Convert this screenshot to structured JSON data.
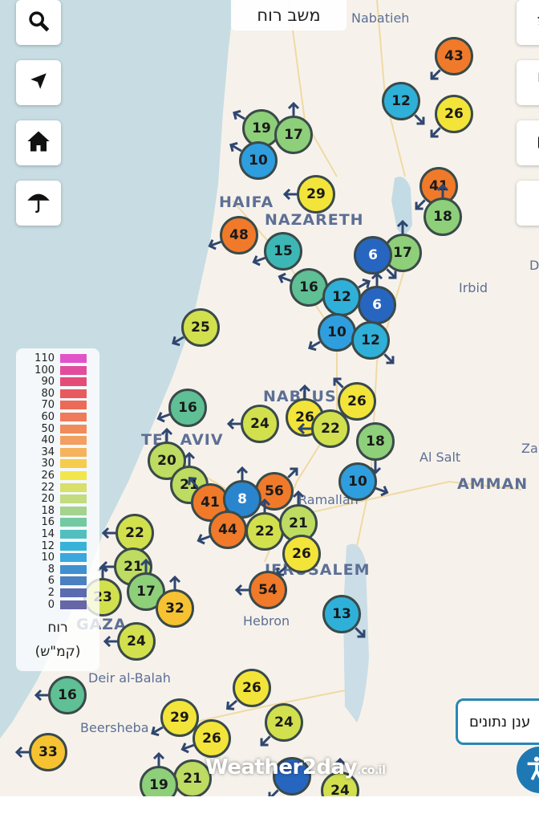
{
  "header": {
    "title": "משב רוח"
  },
  "toolbar_left": [
    {
      "icon": "search-icon"
    },
    {
      "icon": "locate-arrow-icon"
    },
    {
      "icon": "home-icon"
    },
    {
      "icon": "umbrella-icon"
    }
  ],
  "toolbar_right": [
    {
      "icon": "layers-icon"
    },
    {
      "icon": "fullscreen-icon"
    },
    {
      "icon": "camera-icon"
    },
    {
      "icon": "radar-icon"
    }
  ],
  "places": {
    "nabatieh": "Nabatieh",
    "haifa": "HAIFA",
    "nazareth": "NAZARETH",
    "irbid": "Irbid",
    "nablus": "NABLUS",
    "telaviv": "TEL AVIV",
    "alsalt": "Al Salt",
    "amman": "AMMAN",
    "ramallah": "Ramallah",
    "jerusalem": "JERUSALEM",
    "hebron": "Hebron",
    "gaza": "GAZA",
    "deir": "Deir al-Balah",
    "beersheba": "Beersheba",
    "za": "Za",
    "d": "D"
  },
  "legend": {
    "title": "רוח",
    "unit": "(קמ\"ש)",
    "steps": [
      {
        "label": "110",
        "color": "#e253c9"
      },
      {
        "label": "100",
        "color": "#e24c9c"
      },
      {
        "label": "90",
        "color": "#e44c77"
      },
      {
        "label": "80",
        "color": "#e85a5e"
      },
      {
        "label": "70",
        "color": "#ec6a58"
      },
      {
        "label": "60",
        "color": "#ef7b5a"
      },
      {
        "label": "50",
        "color": "#f18b5a"
      },
      {
        "label": "40",
        "color": "#f29f60"
      },
      {
        "label": "34",
        "color": "#f4b35c"
      },
      {
        "label": "30",
        "color": "#f6cc4c"
      },
      {
        "label": "26",
        "color": "#f2e64c"
      },
      {
        "label": "22",
        "color": "#d8df6a"
      },
      {
        "label": "20",
        "color": "#c2dc7e"
      },
      {
        "label": "18",
        "color": "#a4d38e"
      },
      {
        "label": "16",
        "color": "#72c9a2"
      },
      {
        "label": "14",
        "color": "#52bfbf"
      },
      {
        "label": "12",
        "color": "#38b3d8"
      },
      {
        "label": "10",
        "color": "#3ba7dd"
      },
      {
        "label": "8",
        "color": "#3f90d0"
      },
      {
        "label": "6",
        "color": "#4a7fc0"
      },
      {
        "label": "2",
        "color": "#5a6bb0"
      },
      {
        "label": "0",
        "color": "#6766a6"
      }
    ]
  },
  "wind_stations": [
    "43",
    "12",
    "26",
    "19",
    "17",
    "10",
    "29",
    "41",
    "18",
    "48",
    "15",
    "17",
    "6",
    "16",
    "12",
    "6",
    "10",
    "12",
    "25",
    "26",
    "16",
    "24",
    "26",
    "22",
    "18",
    "20",
    "21",
    "10",
    "41",
    "56",
    "8",
    "44",
    "22",
    "21",
    "26",
    "22",
    "21",
    "23",
    "17",
    "32",
    "54",
    "13",
    "24",
    "16",
    "26",
    "29",
    "26",
    "24",
    "33",
    "21",
    "19",
    "",
    "24"
  ],
  "logo": {
    "name": "Weather2day",
    "suffix": "co.il"
  },
  "data_cloud_button": "ענן נתונים"
}
